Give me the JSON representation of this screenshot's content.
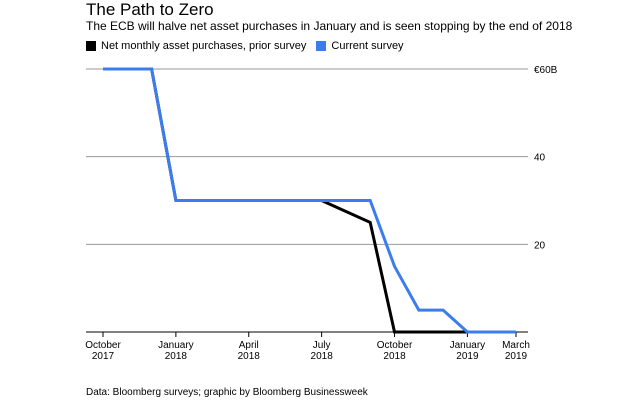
{
  "title": "The Path to Zero",
  "subtitle": "The ECB will halve net asset purchases in January and is seen stopping by the end of 2018",
  "source": "Data: Bloomberg surveys; graphic by Bloomberg Businessweek",
  "colors": {
    "prior": "#000000",
    "current": "#3b7ded",
    "grid": "#9a9a9a"
  },
  "chart_data": {
    "type": "line",
    "title": "The Path to Zero",
    "subtitle": "The ECB will halve net asset purchases in January and is seen stopping by the end of 2018",
    "xlabel": "",
    "ylabel": "",
    "ylim": [
      0,
      60
    ],
    "yticks": [
      {
        "value": 20,
        "label": "20"
      },
      {
        "value": 40,
        "label": "40"
      },
      {
        "value": 60,
        "label": "€60B"
      }
    ],
    "xticks": [
      {
        "date": "2017-10",
        "line1": "October",
        "line2": "2017"
      },
      {
        "date": "2018-01",
        "line1": "January",
        "line2": "2018"
      },
      {
        "date": "2018-04",
        "line1": "April",
        "line2": "2018"
      },
      {
        "date": "2018-07",
        "line1": "July",
        "line2": "2018"
      },
      {
        "date": "2018-10",
        "line1": "October",
        "line2": "2018"
      },
      {
        "date": "2019-01",
        "line1": "January",
        "line2": "2019"
      },
      {
        "date": "2019-03",
        "line1": "March",
        "line2": "2019"
      }
    ],
    "xlim": [
      "2017-10",
      "2019-03"
    ],
    "legend_position": "top-left",
    "grid": true,
    "series": [
      {
        "name": "Net monthly asset purchases, prior survey",
        "color": "#000000",
        "points": [
          {
            "x": "2017-10",
            "y": 60
          },
          {
            "x": "2017-12",
            "y": 60
          },
          {
            "x": "2018-01",
            "y": 30
          },
          {
            "x": "2018-07",
            "y": 30
          },
          {
            "x": "2018-09",
            "y": 25
          },
          {
            "x": "2018-10",
            "y": 0
          },
          {
            "x": "2019-03",
            "y": 0
          }
        ]
      },
      {
        "name": "Current survey",
        "color": "#3b7ded",
        "points": [
          {
            "x": "2017-10",
            "y": 60
          },
          {
            "x": "2017-12",
            "y": 60
          },
          {
            "x": "2018-01",
            "y": 30
          },
          {
            "x": "2018-09",
            "y": 30
          },
          {
            "x": "2018-10",
            "y": 15
          },
          {
            "x": "2018-11",
            "y": 5
          },
          {
            "x": "2018-12",
            "y": 5
          },
          {
            "x": "2019-01",
            "y": 0
          },
          {
            "x": "2019-03",
            "y": 0
          }
        ]
      }
    ]
  }
}
